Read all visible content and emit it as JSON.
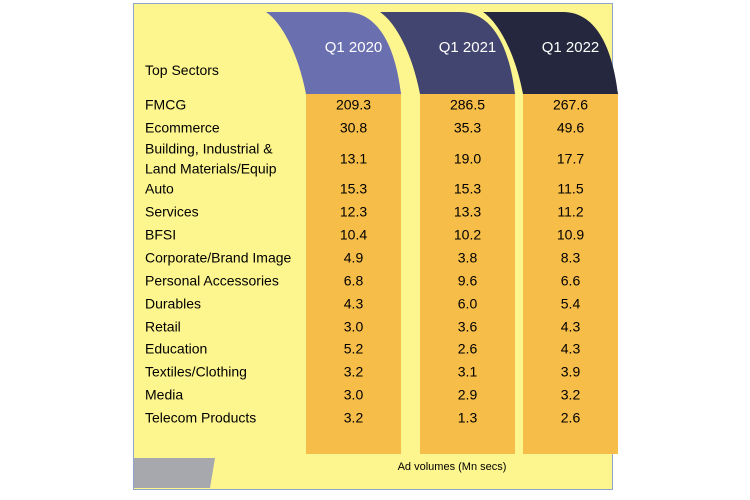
{
  "chart_data": {
    "type": "table",
    "row_header": "Top Sectors",
    "columns": [
      "Q1 2020",
      "Q1 2021",
      "Q1 2022"
    ],
    "column_colors": [
      "#6a6fb0",
      "#42456f",
      "#24273e"
    ],
    "column_fill": "#f6bd49",
    "rows": [
      {
        "label": [
          "FMCG"
        ],
        "values": [
          "209.3",
          "286.5",
          "267.6"
        ]
      },
      {
        "label": [
          "Ecommerce"
        ],
        "values": [
          "30.8",
          "35.3",
          "49.6"
        ]
      },
      {
        "label": [
          "Building, Industrial &",
          "Land Materials/Equip"
        ],
        "values": [
          "13.1",
          "19.0",
          "17.7"
        ]
      },
      {
        "label": [
          "Auto"
        ],
        "values": [
          "15.3",
          "15.3",
          "11.5"
        ]
      },
      {
        "label": [
          "Services"
        ],
        "values": [
          "12.3",
          "13.3",
          "11.2"
        ]
      },
      {
        "label": [
          "BFSI"
        ],
        "values": [
          "10.4",
          "10.2",
          "10.9"
        ]
      },
      {
        "label": [
          "Corporate/Brand Image"
        ],
        "values": [
          "4.9",
          "3.8",
          "8.3"
        ]
      },
      {
        "label": [
          "Personal Accessories"
        ],
        "values": [
          "6.8",
          "9.6",
          "6.6"
        ]
      },
      {
        "label": [
          "Durables"
        ],
        "values": [
          "4.3",
          "6.0",
          "5.4"
        ]
      },
      {
        "label": [
          "Retail"
        ],
        "values": [
          "3.0",
          "3.6",
          "4.3"
        ]
      },
      {
        "label": [
          "Education"
        ],
        "values": [
          "5.2",
          "2.6",
          "4.3"
        ]
      },
      {
        "label": [
          "Textiles/Clothing"
        ],
        "values": [
          "3.2",
          "3.1",
          "3.9"
        ]
      },
      {
        "label": [
          "Media"
        ],
        "values": [
          "3.0",
          "2.9",
          "3.2"
        ]
      },
      {
        "label": [
          "Telecom Products"
        ],
        "values": [
          "3.2",
          "1.3",
          "2.6"
        ]
      }
    ],
    "footer": "Ad volumes (Mn secs)"
  }
}
